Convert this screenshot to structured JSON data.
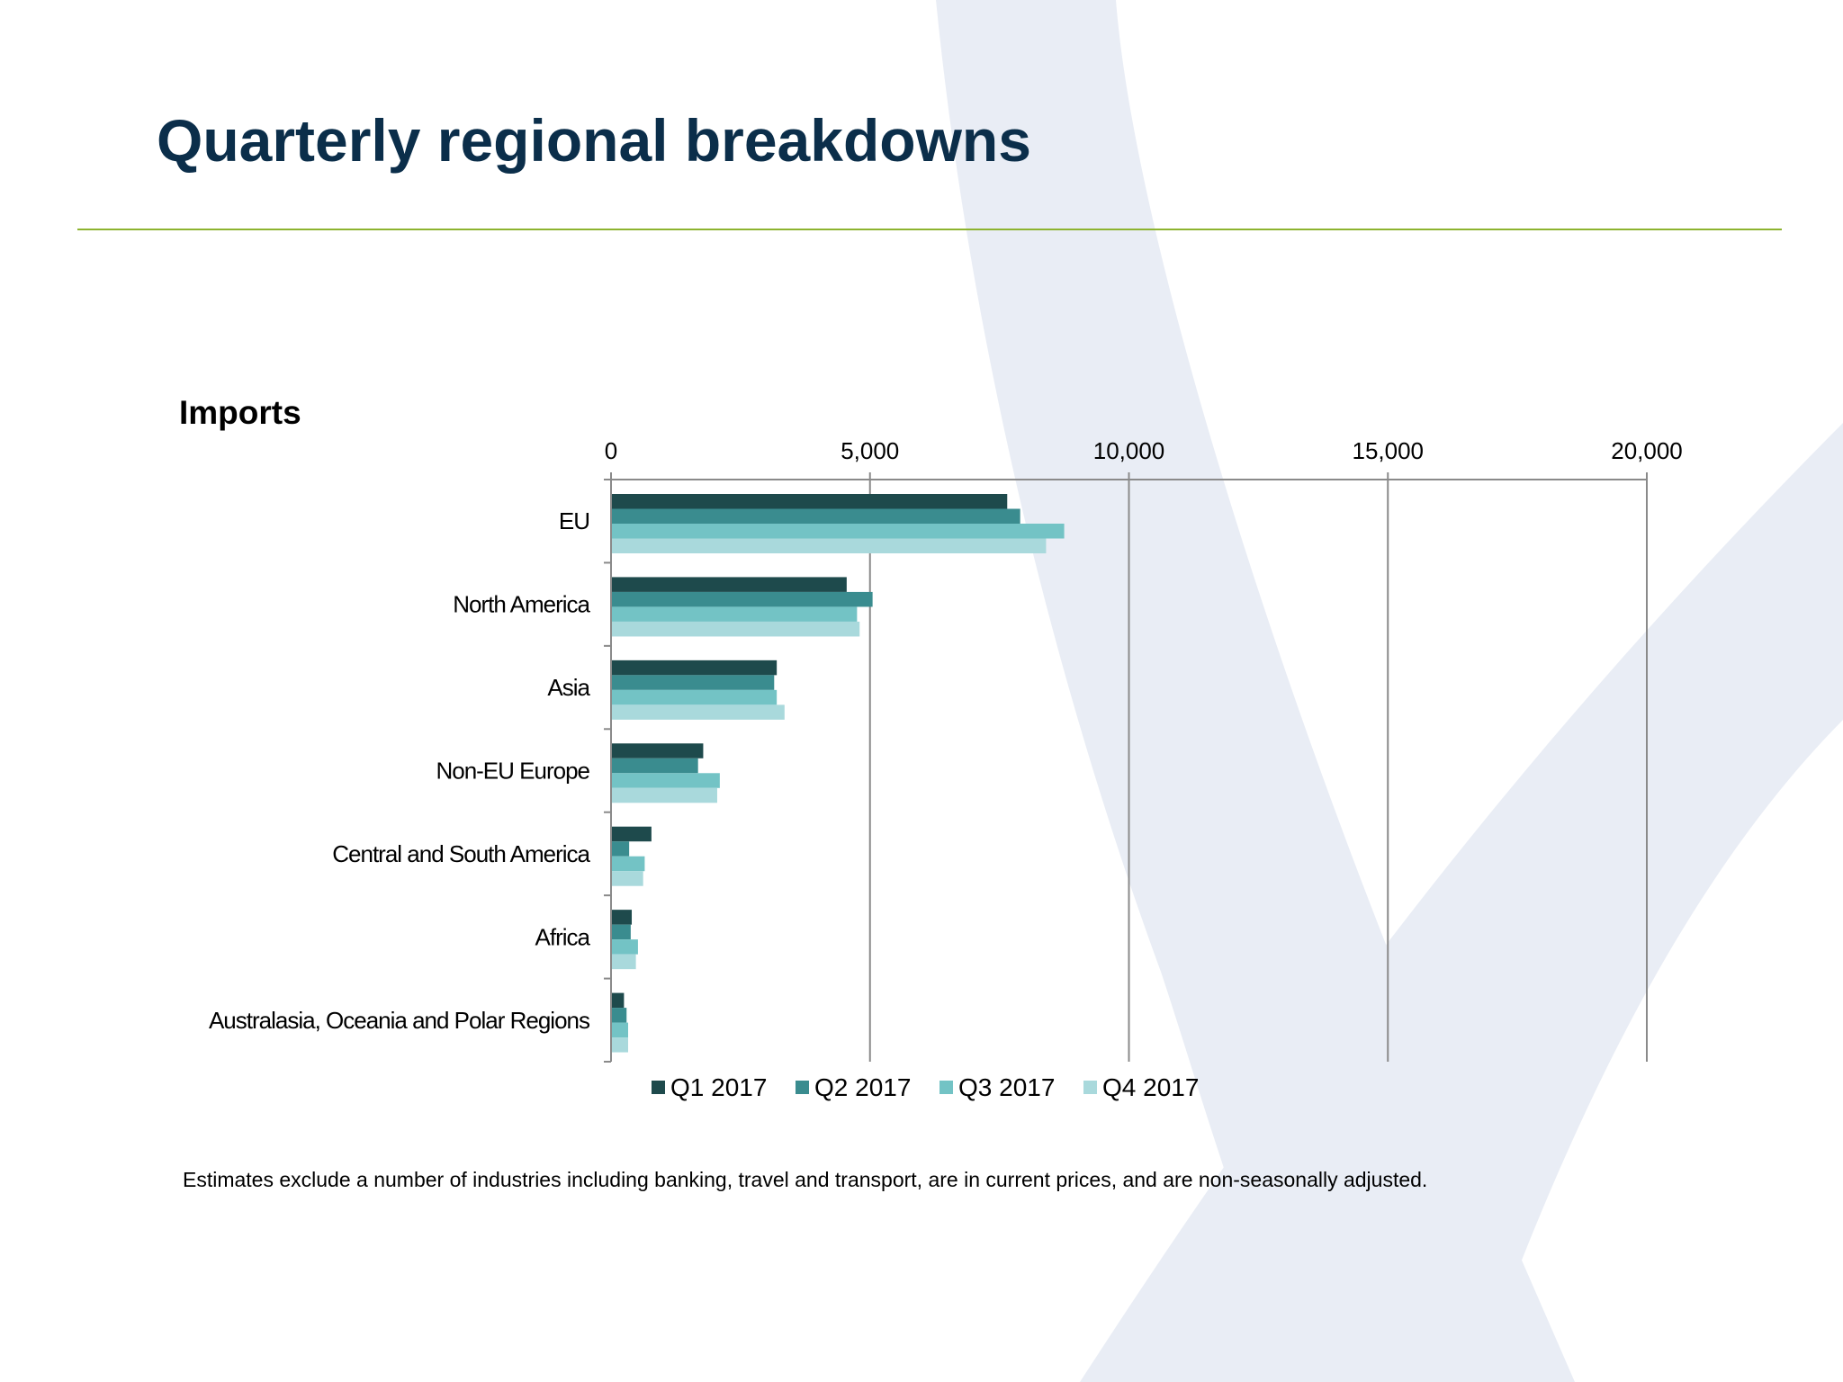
{
  "slide": {
    "title": "Quarterly regional breakdowns",
    "footnote": "Estimates exclude a number of industries including banking, travel and transport, are in current prices, and are non-seasonally adjusted."
  },
  "colors": {
    "title": "#0b2e4a",
    "rule": "#8db32f",
    "watermark": "#e9edf5"
  },
  "chart_data": {
    "type": "bar",
    "orientation": "horizontal",
    "title": "Imports",
    "xlabel": "",
    "ylabel": "",
    "xlim": [
      0,
      20000
    ],
    "ticks": [
      0,
      5000,
      10000,
      15000,
      20000
    ],
    "tick_labels": [
      "0",
      "5,000",
      "10,000",
      "15,000",
      "20,000"
    ],
    "grid": true,
    "axis_position": "top",
    "legend_position": "bottom",
    "categories": [
      "EU",
      "North America",
      "Asia",
      "Non-EU Europe",
      "Central and South America",
      "Africa",
      "Australasia, Oceania and Polar Regions"
    ],
    "series": [
      {
        "name": "Q1 2017",
        "color": "#1e4a4c",
        "values": [
          7650,
          4550,
          3200,
          1780,
          780,
          400,
          250
        ]
      },
      {
        "name": "Q2 2017",
        "color": "#3a8c8f",
        "values": [
          7900,
          5050,
          3150,
          1680,
          350,
          380,
          300
        ]
      },
      {
        "name": "Q3 2017",
        "color": "#73c3c5",
        "values": [
          8750,
          4750,
          3200,
          2100,
          650,
          520,
          330
        ]
      },
      {
        "name": "Q4 2017",
        "color": "#a9d9dc",
        "values": [
          8400,
          4800,
          3350,
          2050,
          620,
          480,
          330
        ]
      }
    ]
  }
}
